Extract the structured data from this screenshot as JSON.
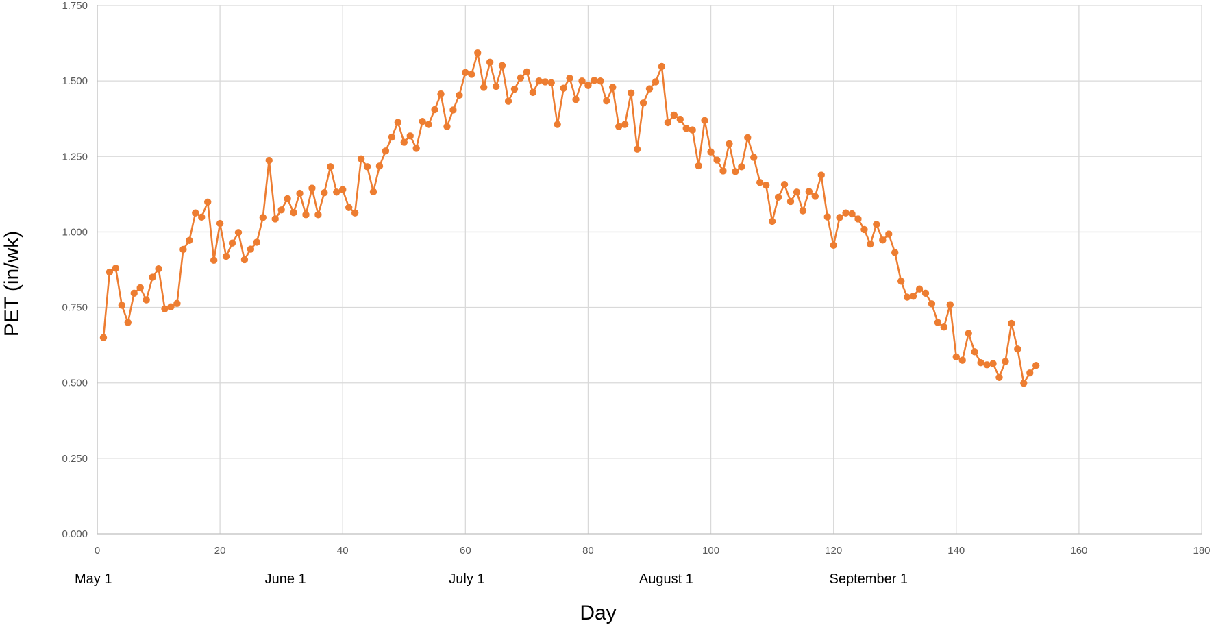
{
  "chart_data": {
    "type": "line",
    "xlabel": "Day",
    "ylabel": "PET (in/wk)",
    "xlim": [
      0,
      180
    ],
    "ylim": [
      0,
      1.75
    ],
    "xticks": [
      0,
      20,
      40,
      60,
      80,
      100,
      120,
      140,
      160,
      180
    ],
    "xtick_labels": [
      "0",
      "20",
      "40",
      "60",
      "80",
      "100",
      "120",
      "140",
      "160",
      "180"
    ],
    "yticks": [
      0,
      0.25,
      0.5,
      0.75,
      1.0,
      1.25,
      1.5,
      1.75
    ],
    "ytick_labels": [
      "0.000",
      "0.250",
      "0.500",
      "0.750",
      "1.000",
      "1.250",
      "1.500",
      "1.750"
    ],
    "grid": true,
    "legend": "none",
    "color": "#ED7D31",
    "month_labels": [
      {
        "day": 0,
        "label": "May 1"
      },
      {
        "day": 31,
        "label": "June 1"
      },
      {
        "day": 61,
        "label": "July 1"
      },
      {
        "day": 92,
        "label": "August 1"
      },
      {
        "day": 123,
        "label": "September 1"
      }
    ],
    "series": [
      {
        "x": [
          1,
          2,
          3,
          4,
          5,
          6,
          7,
          8,
          9,
          10,
          11,
          12,
          13,
          14,
          15,
          16,
          17,
          18,
          19,
          20,
          21,
          22,
          23,
          24,
          25,
          26,
          27,
          28,
          29,
          30,
          31,
          32,
          33,
          34,
          35,
          36,
          37,
          38,
          39,
          40,
          41,
          42,
          43,
          44,
          45,
          46,
          47,
          48,
          49,
          50,
          51,
          52,
          53,
          54,
          55,
          56,
          57,
          58,
          59,
          60,
          61,
          62,
          63,
          64,
          65,
          66,
          67,
          68,
          69,
          70,
          71,
          72,
          73,
          74,
          75,
          76,
          77,
          78,
          79,
          80,
          81,
          82,
          83,
          84,
          85,
          86,
          87,
          88,
          89,
          90,
          91,
          92,
          93,
          94,
          95,
          96,
          97,
          98,
          99,
          100,
          101,
          102,
          103,
          104,
          105,
          106,
          107,
          108,
          109,
          110,
          111,
          112,
          113,
          114,
          115,
          116,
          117,
          118,
          119,
          120,
          121,
          122,
          123,
          124,
          125,
          126,
          127,
          128,
          129,
          130,
          131,
          132,
          133,
          134,
          135,
          136,
          137,
          138,
          139,
          140,
          141,
          142,
          143,
          144,
          145,
          146,
          147,
          148,
          149,
          150,
          151,
          152,
          153
        ],
        "y": [
          0.65,
          0.867,
          0.88,
          0.757,
          0.7,
          0.797,
          0.815,
          0.775,
          0.85,
          0.878,
          0.745,
          0.752,
          0.763,
          0.942,
          0.972,
          1.063,
          1.049,
          1.099,
          0.906,
          1.028,
          0.919,
          0.963,
          0.998,
          0.908,
          0.943,
          0.966,
          1.048,
          1.237,
          1.043,
          1.073,
          1.11,
          1.064,
          1.128,
          1.057,
          1.145,
          1.057,
          1.13,
          1.216,
          1.132,
          1.14,
          1.081,
          1.063,
          1.242,
          1.216,
          1.133,
          1.218,
          1.268,
          1.314,
          1.363,
          1.297,
          1.318,
          1.277,
          1.366,
          1.356,
          1.405,
          1.457,
          1.349,
          1.404,
          1.453,
          1.528,
          1.522,
          1.593,
          1.479,
          1.562,
          1.482,
          1.551,
          1.433,
          1.473,
          1.51,
          1.53,
          1.462,
          1.5,
          1.497,
          1.494,
          1.356,
          1.476,
          1.509,
          1.439,
          1.5,
          1.485,
          1.502,
          1.5,
          1.434,
          1.479,
          1.349,
          1.356,
          1.46,
          1.274,
          1.427,
          1.474,
          1.497,
          1.548,
          1.362,
          1.387,
          1.373,
          1.343,
          1.338,
          1.219,
          1.369,
          1.265,
          1.238,
          1.202,
          1.292,
          1.2,
          1.216,
          1.312,
          1.247,
          1.164,
          1.155,
          1.035,
          1.115,
          1.157,
          1.101,
          1.132,
          1.07,
          1.134,
          1.118,
          1.188,
          1.05,
          0.956,
          1.048,
          1.063,
          1.06,
          1.043,
          1.008,
          0.96,
          1.025,
          0.973,
          0.993,
          0.932,
          0.837,
          0.784,
          0.787,
          0.811,
          0.797,
          0.762,
          0.7,
          0.685,
          0.759,
          0.586,
          0.575,
          0.664,
          0.603,
          0.567,
          0.56,
          0.564,
          0.518,
          0.571,
          0.697,
          0.612,
          0.499,
          0.533,
          0.558
        ]
      }
    ]
  }
}
